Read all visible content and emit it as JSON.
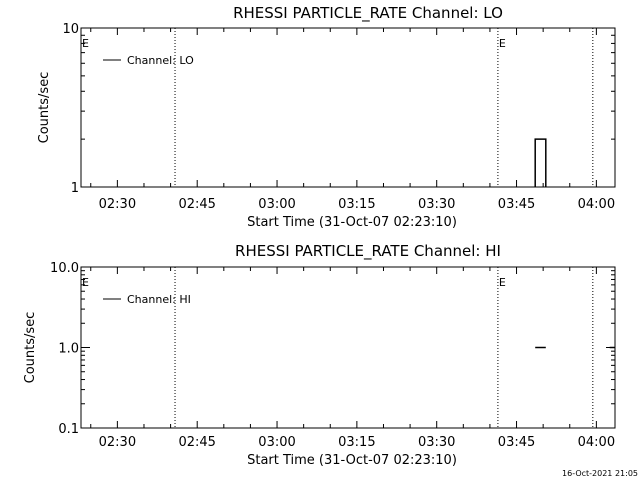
{
  "footer": {
    "timestamp": "16-Oct-2021 21:05"
  },
  "chart_data": [
    {
      "type": "line",
      "title": "RHESSI PARTICLE_RATE Channel: LO",
      "xlabel": "Start Time (31-Oct-07 02:23:10)",
      "ylabel": "Counts/sec",
      "yscale": "log",
      "xlim": [
        "02:23:10",
        "04:03:30"
      ],
      "ylim": [
        1,
        10
      ],
      "xticks": [
        "02:30",
        "02:45",
        "03:00",
        "03:15",
        "03:30",
        "03:45",
        "04:00"
      ],
      "yticks": [
        {
          "value": 1,
          "label": "1"
        },
        {
          "value": 10,
          "label": "10"
        }
      ],
      "grid": false,
      "legend": {
        "position": "top-left",
        "entries": [
          "Channel: LO"
        ]
      },
      "markers": [
        {
          "time": "02:23:10",
          "type": "vertical-dotted",
          "label": "E"
        },
        {
          "time": "02:40:50",
          "type": "vertical-dotted",
          "label": ""
        },
        {
          "time": "03:41:30",
          "type": "vertical-dotted",
          "label": "E"
        },
        {
          "time": "03:59:20",
          "type": "vertical-dotted",
          "label": ""
        }
      ],
      "series": [
        {
          "name": "Channel: LO",
          "points": [
            {
              "x": "03:48:30",
              "y": 1
            },
            {
              "x": "03:48:30",
              "y": 2
            },
            {
              "x": "03:50:30",
              "y": 2
            },
            {
              "x": "03:50:30",
              "y": 1
            }
          ]
        }
      ]
    },
    {
      "type": "line",
      "title": "RHESSI PARTICLE_RATE Channel: HI",
      "xlabel": "Start Time (31-Oct-07 02:23:10)",
      "ylabel": "Counts/sec",
      "yscale": "log",
      "xlim": [
        "02:23:10",
        "04:03:30"
      ],
      "ylim": [
        0.1,
        10
      ],
      "xticks": [
        "02:30",
        "02:45",
        "03:00",
        "03:15",
        "03:30",
        "03:45",
        "04:00"
      ],
      "yticks": [
        {
          "value": 0.1,
          "label": "0.1"
        },
        {
          "value": 1,
          "label": "1.0"
        },
        {
          "value": 10,
          "label": "10.0"
        }
      ],
      "grid": false,
      "legend": {
        "position": "top-left",
        "entries": [
          "Channel: HI"
        ]
      },
      "markers": [
        {
          "time": "02:23:10",
          "type": "vertical-dotted",
          "label": "E"
        },
        {
          "time": "02:40:50",
          "type": "vertical-dotted",
          "label": ""
        },
        {
          "time": "03:41:30",
          "type": "vertical-dotted",
          "label": "E"
        },
        {
          "time": "03:59:20",
          "type": "vertical-dotted",
          "label": ""
        }
      ],
      "series": [
        {
          "name": "Channel: HI",
          "segments": [
            [
              {
                "x": "03:48:30",
                "y": 1
              },
              {
                "x": "03:50:30",
                "y": 1
              }
            ],
            [
              {
                "x": "04:02:30",
                "y": 1
              },
              {
                "x": "04:03:30",
                "y": 1
              }
            ]
          ]
        }
      ]
    }
  ]
}
